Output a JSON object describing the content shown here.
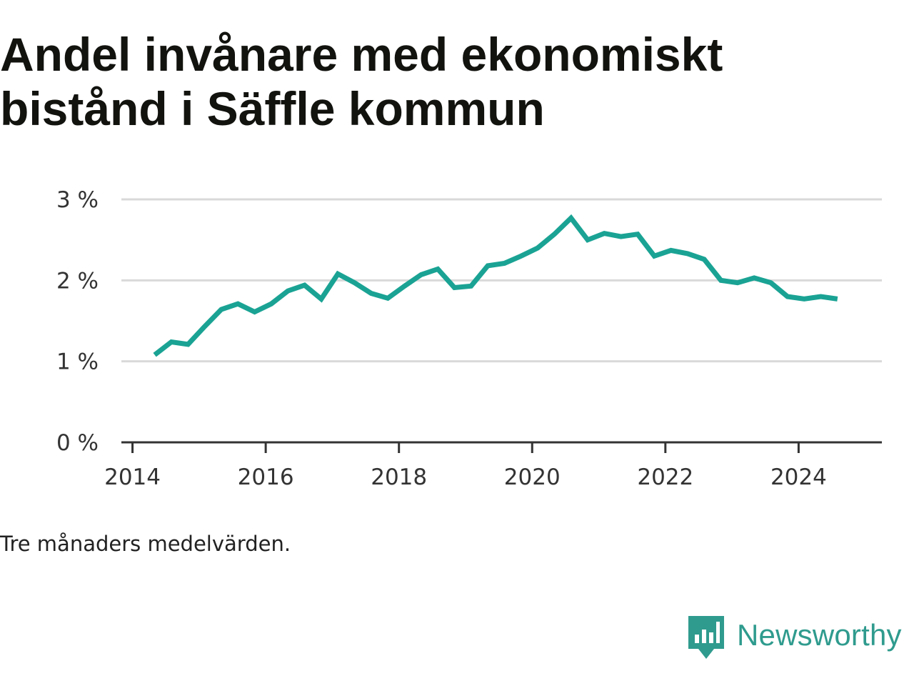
{
  "title_line1": "Andel invånare med ekonomiskt",
  "title_line2": "bistånd i Säffle kommun",
  "note": "Tre månaders medelvärden.",
  "brand": {
    "name": "Newsworthy",
    "icon": "newsworthy-logo-icon"
  },
  "colors": {
    "line": "#1aa394",
    "grid": "#d9d9d9",
    "axis": "#333333",
    "brand": "#2f9b8e"
  },
  "chart_data": {
    "type": "line",
    "title": "Andel invånare med ekonomiskt bistånd i Säffle kommun",
    "xlabel": "",
    "ylabel": "",
    "ylim": [
      0,
      3
    ],
    "xlim": [
      "2013-11",
      "2025-04"
    ],
    "grid": true,
    "y_ticks": [
      0,
      1,
      2,
      3
    ],
    "y_tick_labels": [
      "0 %",
      "1 %",
      "2 %",
      "3 %"
    ],
    "x_ticks": [
      "2014",
      "2016",
      "2018",
      "2020",
      "2022",
      "2024"
    ],
    "x": [
      "2014-05",
      "2014-08",
      "2014-11",
      "2015-02",
      "2015-05",
      "2015-08",
      "2015-11",
      "2016-02",
      "2016-05",
      "2016-08",
      "2016-11",
      "2017-02",
      "2017-05",
      "2017-08",
      "2017-11",
      "2018-02",
      "2018-05",
      "2018-08",
      "2018-11",
      "2019-02",
      "2019-05",
      "2019-08",
      "2019-11",
      "2020-02",
      "2020-05",
      "2020-08",
      "2020-11",
      "2021-02",
      "2021-05",
      "2021-08",
      "2021-11",
      "2022-02",
      "2022-05",
      "2022-08",
      "2022-11",
      "2023-02",
      "2023-05",
      "2023-08",
      "2023-11",
      "2024-02",
      "2024-05",
      "2024-08"
    ],
    "series": [
      {
        "values": [
          1.08,
          1.24,
          1.21,
          1.43,
          1.64,
          1.71,
          1.61,
          1.71,
          1.87,
          1.94,
          1.77,
          2.08,
          1.97,
          1.84,
          1.78,
          1.93,
          2.07,
          2.14,
          1.91,
          1.93,
          2.18,
          2.21,
          2.3,
          2.4,
          2.57,
          2.77,
          2.5,
          2.58,
          2.54,
          2.57,
          2.3,
          2.37,
          2.33,
          2.26,
          2.0,
          1.97,
          2.03,
          1.97,
          1.8,
          1.77,
          1.8,
          1.77
        ]
      }
    ]
  }
}
